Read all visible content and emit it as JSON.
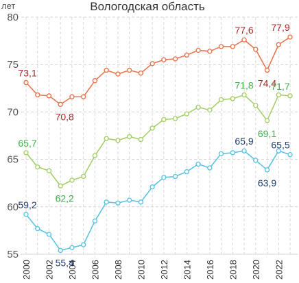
{
  "chart_data": {
    "type": "line",
    "title": "Вологодская область",
    "ylabel": "лет",
    "xlabel": "",
    "ylim": [
      55,
      80
    ],
    "yticks": [
      55,
      60,
      65,
      70,
      75,
      80
    ],
    "x": [
      2000,
      2001,
      2002,
      2003,
      2004,
      2005,
      2006,
      2007,
      2008,
      2009,
      2010,
      2011,
      2012,
      2013,
      2014,
      2015,
      2016,
      2017,
      2018,
      2019,
      2020,
      2021,
      2022,
      2023
    ],
    "xticks": [
      2000,
      2002,
      2004,
      2006,
      2008,
      2010,
      2012,
      2014,
      2016,
      2018,
      2020,
      2022
    ],
    "grid": true,
    "series": [
      {
        "color": "#e8764e",
        "label_color": "#a52a2a",
        "values": [
          73.1,
          71.8,
          71.7,
          70.8,
          71.6,
          71.6,
          73.3,
          74.4,
          74.0,
          74.4,
          74.1,
          75.1,
          75.5,
          75.6,
          76.0,
          76.5,
          76.4,
          76.9,
          76.9,
          77.6,
          76.6,
          74.4,
          77.1,
          77.9
        ],
        "labels": [
          {
            "year": 2000,
            "text": "73,1"
          },
          {
            "year": 2003,
            "text": "70,8"
          },
          {
            "year": 2019,
            "text": "77,6"
          },
          {
            "year": 2021,
            "text": "74,4"
          },
          {
            "year": 2023,
            "text": "77,9"
          }
        ]
      },
      {
        "color": "#a6cf6a",
        "label_color": "#3cae4a",
        "values": [
          65.7,
          64.2,
          63.8,
          62.2,
          62.8,
          63.2,
          65.4,
          67.2,
          67.0,
          67.4,
          67.1,
          68.3,
          69.2,
          69.3,
          69.8,
          70.5,
          70.2,
          71.3,
          71.4,
          71.8,
          70.7,
          69.1,
          71.8,
          71.7
        ],
        "labels": [
          {
            "year": 2000,
            "text": "65,7"
          },
          {
            "year": 2003,
            "text": "62,2"
          },
          {
            "year": 2019,
            "text": "71,8"
          },
          {
            "year": 2021,
            "text": "69,1"
          },
          {
            "year": 2023,
            "text": "71,7"
          }
        ]
      },
      {
        "color": "#5bc4e4",
        "label_color": "#1f3b6f",
        "values": [
          59.2,
          57.7,
          57.1,
          55.4,
          55.7,
          56.0,
          58.5,
          60.5,
          60.4,
          60.7,
          60.5,
          62.1,
          63.1,
          63.2,
          63.7,
          64.5,
          64.1,
          65.6,
          65.7,
          65.9,
          64.9,
          63.9,
          65.9,
          65.5
        ],
        "labels": [
          {
            "year": 2000,
            "text": "59,2"
          },
          {
            "year": 2003,
            "text": "55,4"
          },
          {
            "year": 2019,
            "text": "65,9"
          },
          {
            "year": 2021,
            "text": "63,9"
          },
          {
            "year": 2023,
            "text": "65,5"
          }
        ]
      }
    ]
  }
}
